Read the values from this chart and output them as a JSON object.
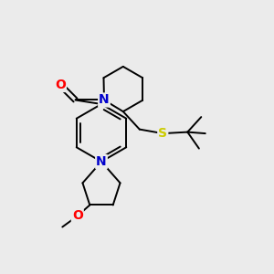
{
  "bg_color": "#ebebeb",
  "atom_colors": {
    "O": "#ff0000",
    "N": "#0000cc",
    "S": "#cccc00",
    "C": "#000000"
  },
  "bond_color": "#000000",
  "bond_width": 1.4,
  "font_size_atom": 9
}
